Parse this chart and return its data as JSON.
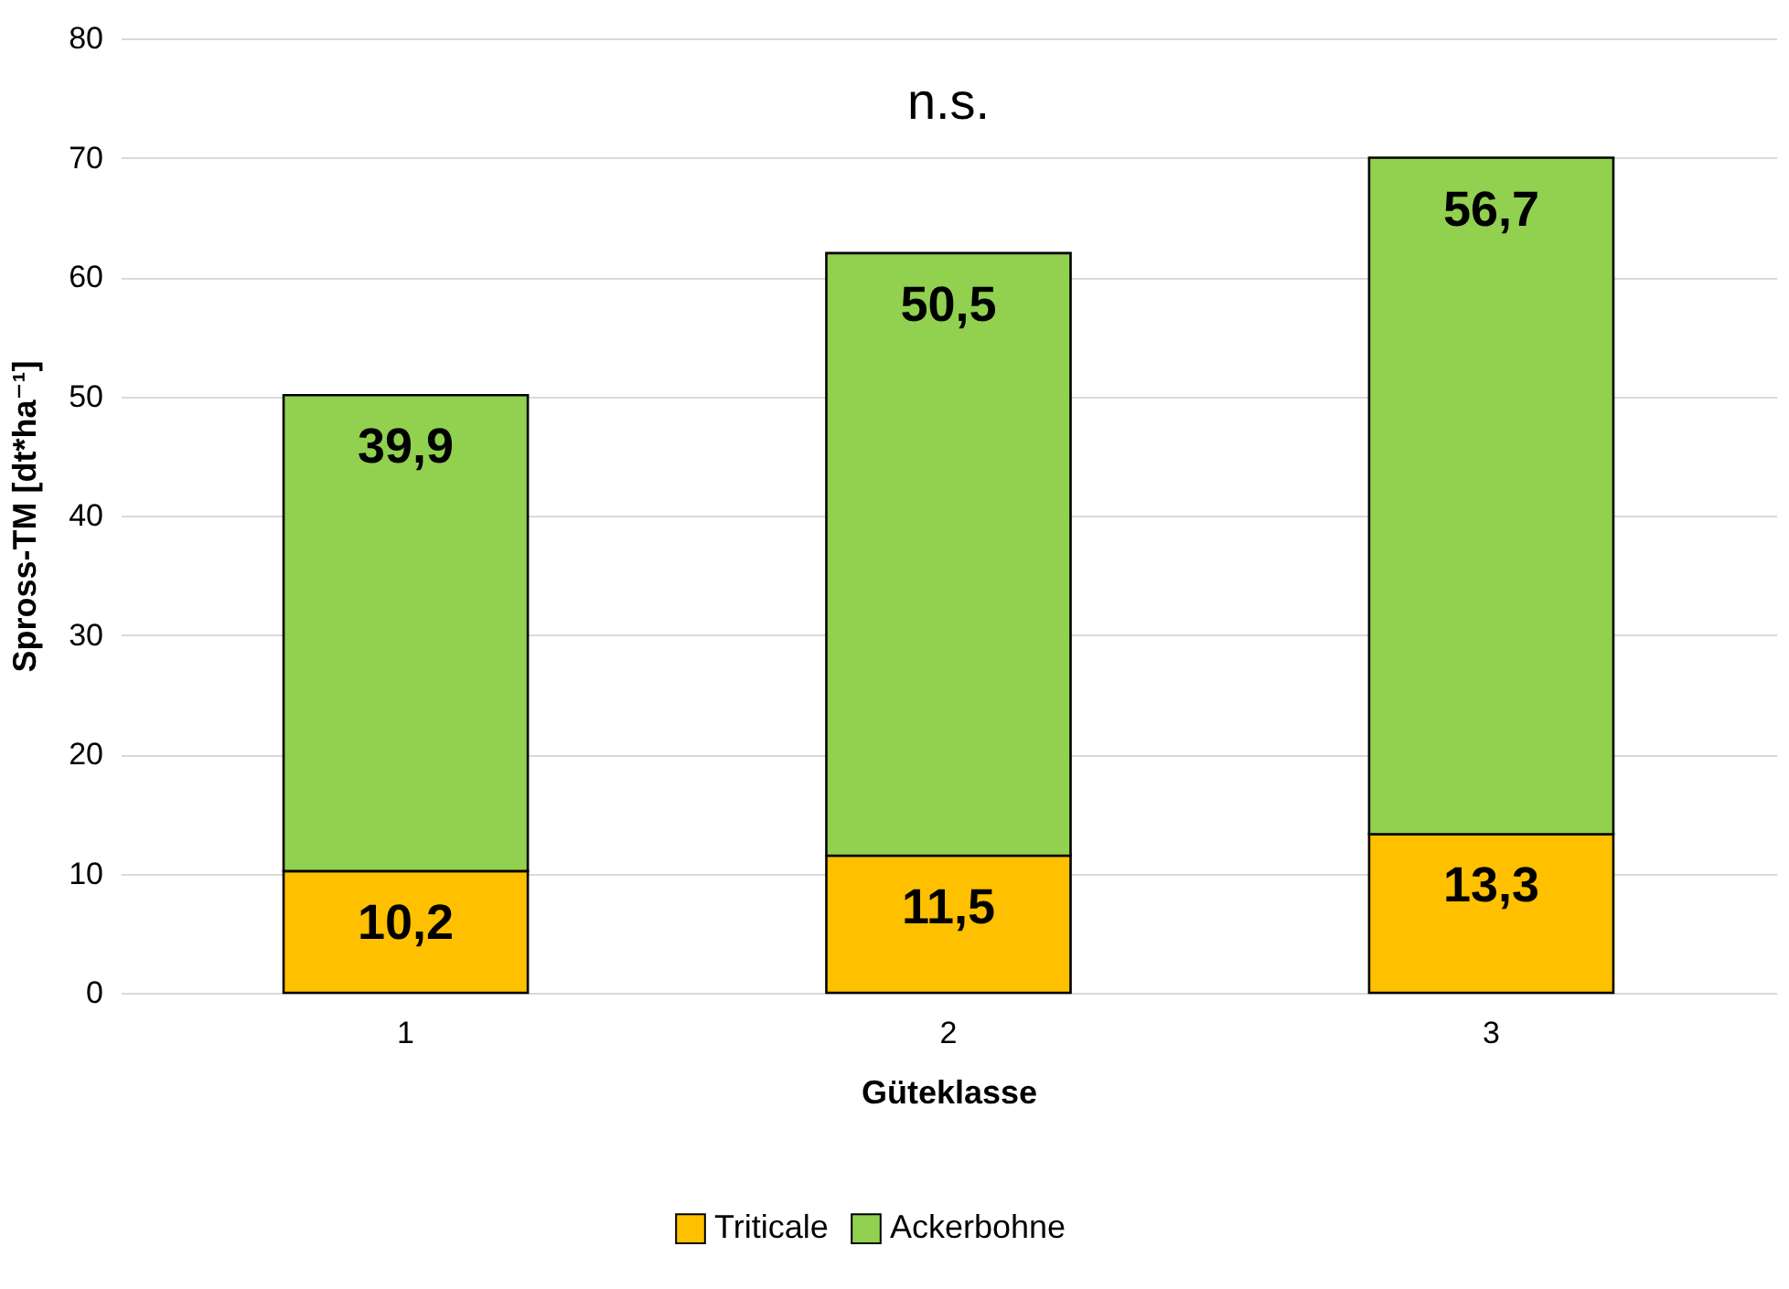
{
  "chart_data": {
    "type": "bar",
    "stacked": true,
    "xlabel": "Güteklasse",
    "ylabel": "Spross-TM [dt*ha⁻¹]",
    "categories": [
      "1",
      "2",
      "3"
    ],
    "series": [
      {
        "name": "Triticale",
        "color": "#ffc000",
        "values": [
          10.2,
          11.5,
          13.3
        ],
        "value_labels": [
          "10,2",
          "11,5",
          "13,3"
        ]
      },
      {
        "name": "Ackerbohne",
        "color": "#92d050",
        "values": [
          39.9,
          50.5,
          56.7
        ],
        "value_labels": [
          "39,9",
          "50,5",
          "56,7"
        ]
      }
    ],
    "ylim": [
      0,
      80
    ],
    "yticks": [
      0,
      10,
      20,
      30,
      40,
      50,
      60,
      70,
      80
    ],
    "grid": "y",
    "legend": "bottom",
    "annotations": [
      "n.s."
    ]
  }
}
